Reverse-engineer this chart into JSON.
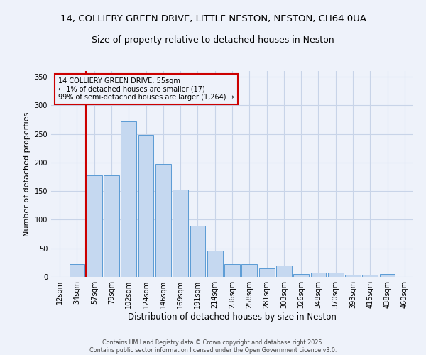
{
  "title1": "14, COLLIERY GREEN DRIVE, LITTLE NESTON, NESTON, CH64 0UA",
  "title2": "Size of property relative to detached houses in Neston",
  "xlabel": "Distribution of detached houses by size in Neston",
  "ylabel": "Number of detached properties",
  "bar_labels": [
    "12sqm",
    "34sqm",
    "57sqm",
    "79sqm",
    "102sqm",
    "124sqm",
    "146sqm",
    "169sqm",
    "191sqm",
    "214sqm",
    "236sqm",
    "258sqm",
    "281sqm",
    "303sqm",
    "326sqm",
    "348sqm",
    "370sqm",
    "393sqm",
    "415sqm",
    "438sqm",
    "460sqm"
  ],
  "bar_values": [
    0,
    22,
    178,
    178,
    272,
    248,
    198,
    153,
    90,
    46,
    22,
    22,
    15,
    20,
    5,
    8,
    8,
    4,
    4,
    5,
    0
  ],
  "bar_color": "#c5d8f0",
  "bar_edge_color": "#5b9bd5",
  "vline_x": 1.5,
  "vline_color": "#cc0000",
  "annotation_text": "14 COLLIERY GREEN DRIVE: 55sqm\n← 1% of detached houses are smaller (17)\n99% of semi-detached houses are larger (1,264) →",
  "annotation_box_color": "#cc0000",
  "bg_color": "#eef2fa",
  "grid_color": "#c8d4e8",
  "ylim": [
    0,
    360
  ],
  "yticks": [
    0,
    50,
    100,
    150,
    200,
    250,
    300,
    350
  ],
  "footer": "Contains HM Land Registry data © Crown copyright and database right 2025.\nContains public sector information licensed under the Open Government Licence v3.0.",
  "title1_fontsize": 9.5,
  "title2_fontsize": 9,
  "ylabel_fontsize": 8,
  "xlabel_fontsize": 8.5,
  "tick_fontsize": 7,
  "ann_fontsize": 7,
  "footer_fontsize": 5.8
}
